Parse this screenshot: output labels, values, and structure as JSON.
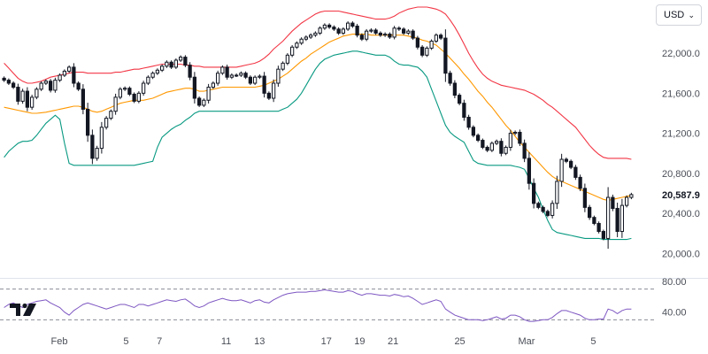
{
  "currency": {
    "label": "USD",
    "chevron": "chevron-down-icon"
  },
  "logo": {
    "icon": "tradingview-logo-icon"
  },
  "chart_data": [
    {
      "type": "candlestick",
      "title": "",
      "ylim": [
        19880,
        22460
      ],
      "yticks": [
        "22,000.0",
        "21,600.0",
        "21,200.0",
        "20,800.0",
        "20,400.0",
        "20,000.0"
      ],
      "ytick_values": [
        22000,
        21600,
        21200,
        20800,
        20400,
        20000
      ],
      "last_price": "20,587.9",
      "last_value": 20587.9,
      "xticks": [
        {
          "label": "Feb",
          "day": 0
        },
        {
          "label": "5",
          "day": 4
        },
        {
          "label": "7",
          "day": 6
        },
        {
          "label": "11",
          "day": 10
        },
        {
          "label": "13",
          "day": 12
        },
        {
          "label": "17",
          "day": 16
        },
        {
          "label": "19",
          "day": 18
        },
        {
          "label": "21",
          "day": 20
        },
        {
          "label": "25",
          "day": 24
        },
        {
          "label": "Mar",
          "day": 28
        },
        {
          "label": "5",
          "day": 32
        }
      ],
      "close": [
        21730,
        21700,
        21660,
        21520,
        21620,
        21460,
        21560,
        21640,
        21700,
        21720,
        21630,
        21730,
        21780,
        21820,
        21860,
        21700,
        21640,
        21440,
        21180,
        20950,
        21050,
        21260,
        21350,
        21420,
        21560,
        21640,
        21650,
        21590,
        21520,
        21600,
        21700,
        21760,
        21800,
        21830,
        21870,
        21910,
        21860,
        21930,
        21960,
        21880,
        21760,
        21550,
        21480,
        21530,
        21660,
        21700,
        21800,
        21860,
        21760,
        21780,
        21780,
        21800,
        21760,
        21700,
        21760,
        21770,
        21600,
        21550,
        21700,
        21840,
        21900,
        21980,
        22060,
        22100,
        22140,
        22160,
        22180,
        22200,
        22250,
        22280,
        22260,
        22240,
        22200,
        22240,
        22300,
        22270,
        22180,
        22140,
        22220,
        22230,
        22200,
        22180,
        22190,
        22160,
        22250,
        22240,
        22200,
        22220,
        22150,
        22060,
        21980,
        22050,
        22120,
        22180,
        22150,
        21800,
        21700,
        21580,
        21500,
        21360,
        21260,
        21180,
        21130,
        21060,
        21030,
        21100,
        21120,
        21000,
        21060,
        21200,
        21210,
        21100,
        20950,
        20700,
        20500,
        20460,
        20420,
        20380,
        20500,
        20720,
        20940,
        20920,
        20860,
        20760,
        20650,
        20460,
        20360,
        20300,
        20220,
        20150,
        20560,
        20450,
        20220,
        20480,
        20560,
        20587.9
      ],
      "sma20": [
        21460,
        21450,
        21440,
        21430,
        21420,
        21410,
        21400,
        21400,
        21405,
        21410,
        21420,
        21430,
        21440,
        21450,
        21460,
        21470,
        21470,
        21460,
        21440,
        21420,
        21410,
        21420,
        21440,
        21460,
        21480,
        21500,
        21510,
        21520,
        21530,
        21530,
        21530,
        21540,
        21550,
        21570,
        21590,
        21610,
        21620,
        21630,
        21640,
        21650,
        21650,
        21640,
        21620,
        21620,
        21630,
        21640,
        21650,
        21660,
        21660,
        21660,
        21660,
        21660,
        21660,
        21660,
        21660,
        21670,
        21680,
        21700,
        21720,
        21740,
        21770,
        21800,
        21840,
        21880,
        21920,
        21950,
        21990,
        22020,
        22050,
        22080,
        22110,
        22130,
        22150,
        22170,
        22180,
        22190,
        22190,
        22190,
        22190,
        22180,
        22180,
        22180,
        22180,
        22180,
        22180,
        22180,
        22180,
        22170,
        22160,
        22150,
        22130,
        22120,
        22100,
        22080,
        22040,
        22000,
        21950,
        21900,
        21850,
        21790,
        21740,
        21680,
        21620,
        21570,
        21510,
        21460,
        21400,
        21340,
        21280,
        21230,
        21170,
        21110,
        21060,
        21010,
        20960,
        20910,
        20860,
        20810,
        20770,
        20740,
        20720,
        20700,
        20680,
        20660,
        20640,
        20620,
        20600,
        20580,
        20560,
        20540,
        20530,
        20540,
        20550,
        20560,
        20570,
        20580
      ],
      "upper": [
        21900,
        21850,
        21800,
        21750,
        21720,
        21700,
        21700,
        21710,
        21720,
        21740,
        21760,
        21770,
        21780,
        21790,
        21800,
        21810,
        21810,
        21810,
        21800,
        21800,
        21800,
        21800,
        21800,
        21800,
        21810,
        21810,
        21820,
        21830,
        21840,
        21840,
        21850,
        21860,
        21870,
        21880,
        21890,
        21890,
        21890,
        21890,
        21890,
        21880,
        21880,
        21870,
        21870,
        21860,
        21860,
        21860,
        21860,
        21860,
        21860,
        21860,
        21860,
        21870,
        21880,
        21890,
        21900,
        21920,
        21950,
        21990,
        22040,
        22080,
        22120,
        22170,
        22220,
        22260,
        22300,
        22330,
        22360,
        22390,
        22410,
        22420,
        22420,
        22420,
        22420,
        22410,
        22400,
        22390,
        22380,
        22370,
        22360,
        22350,
        22340,
        22340,
        22340,
        22350,
        22370,
        22400,
        22420,
        22440,
        22450,
        22460,
        22460,
        22460,
        22450,
        22440,
        22420,
        22390,
        22330,
        22260,
        22180,
        22090,
        22000,
        21920,
        21850,
        21790,
        21750,
        21720,
        21700,
        21680,
        21670,
        21660,
        21650,
        21640,
        21630,
        21610,
        21590,
        21560,
        21530,
        21490,
        21460,
        21420,
        21380,
        21340,
        21300,
        21260,
        21200,
        21140,
        21080,
        21030,
        20990,
        20960,
        20950,
        20950,
        20950,
        20950,
        20950,
        20940
      ],
      "lower": [
        20960,
        21020,
        21060,
        21100,
        21120,
        21120,
        21130,
        21180,
        21240,
        21300,
        21340,
        21380,
        21340,
        21100,
        20900,
        20880,
        20880,
        20880,
        20880,
        20880,
        20880,
        20880,
        20880,
        20880,
        20880,
        20880,
        20880,
        20880,
        20880,
        20890,
        20900,
        20910,
        20920,
        21060,
        21160,
        21200,
        21240,
        21270,
        21290,
        21330,
        21360,
        21400,
        21420,
        21420,
        21420,
        21420,
        21420,
        21420,
        21420,
        21420,
        21420,
        21420,
        21420,
        21420,
        21420,
        21420,
        21420,
        21420,
        21420,
        21420,
        21440,
        21460,
        21500,
        21540,
        21600,
        21680,
        21760,
        21840,
        21900,
        21940,
        21960,
        21980,
        21990,
        22000,
        22010,
        22020,
        22020,
        22010,
        22000,
        21990,
        21980,
        21980,
        21980,
        21960,
        21920,
        21890,
        21880,
        21880,
        21870,
        21860,
        21820,
        21760,
        21640,
        21520,
        21400,
        21280,
        21210,
        21170,
        21140,
        21110,
        21020,
        20930,
        20900,
        20890,
        20880,
        20880,
        20880,
        20880,
        20880,
        20880,
        20870,
        20860,
        20840,
        20750,
        20650,
        20560,
        20440,
        20330,
        20240,
        20210,
        20200,
        20190,
        20180,
        20170,
        20160,
        20150,
        20150,
        20150,
        20150,
        20140,
        20140,
        20140,
        20140,
        20140,
        20140,
        20150
      ],
      "rsi": {
        "levels": [
          70,
          30
        ],
        "yticks": [
          "80.00",
          "40.00"
        ],
        "ytick_values": [
          80,
          40
        ],
        "ylim": [
          20,
          80
        ],
        "values": [
          46,
          50,
          52,
          49,
          46,
          50,
          52,
          54,
          55,
          56,
          52,
          49,
          46,
          40,
          36,
          42,
          46,
          50,
          52,
          50,
          48,
          46,
          44,
          46,
          48,
          50,
          50,
          48,
          46,
          50,
          50,
          48,
          50,
          52,
          54,
          56,
          55,
          54,
          56,
          57,
          53,
          48,
          46,
          48,
          52,
          54,
          56,
          58,
          56,
          55,
          55,
          56,
          54,
          52,
          55,
          56,
          53,
          52,
          56,
          59,
          62,
          64,
          65,
          66,
          66,
          66,
          67,
          67,
          68,
          69,
          68,
          67,
          66,
          66,
          68,
          67,
          64,
          62,
          64,
          64,
          63,
          62,
          62,
          61,
          63,
          62,
          60,
          61,
          58,
          54,
          50,
          52,
          54,
          56,
          54,
          44,
          40,
          36,
          34,
          32,
          30,
          30,
          30,
          29,
          30,
          32,
          34,
          31,
          32,
          36,
          36,
          34,
          30,
          28,
          28,
          29,
          30,
          30,
          33,
          38,
          42,
          42,
          40,
          38,
          36,
          32,
          30,
          30,
          31,
          31,
          44,
          42,
          38,
          42,
          44,
          44
        ]
      }
    }
  ]
}
